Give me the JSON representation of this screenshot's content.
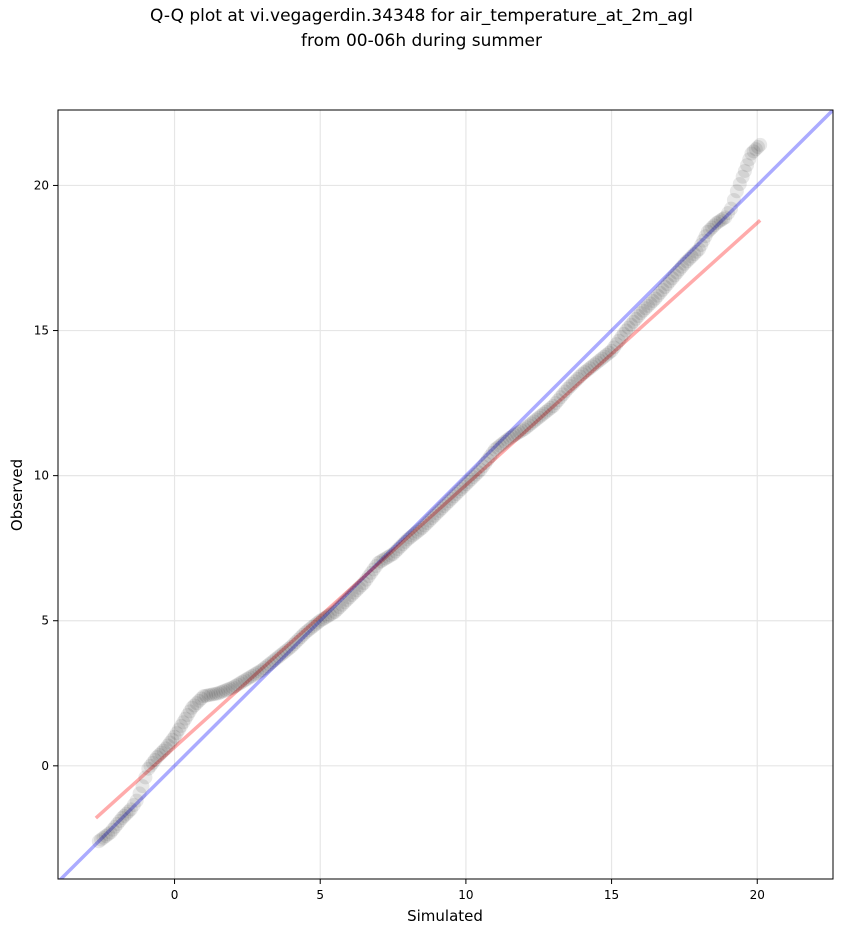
{
  "chart_data": {
    "type": "scatter",
    "title": "Q-Q plot at vi.vegagerdin.34348 for air_temperature_at_2m_agl",
    "subtitle": "from 00-06h during summer",
    "xlabel": "Simulated",
    "ylabel": "Observed",
    "xlim": [
      -4.0,
      22.6
    ],
    "ylim": [
      -3.9,
      22.6
    ],
    "xticks": [
      0,
      5,
      10,
      15,
      20
    ],
    "yticks": [
      0,
      5,
      10,
      15,
      20
    ],
    "grid": true,
    "colors": {
      "points": "#000000",
      "identity_line": "#0000ff",
      "fit_line": "#ff0000"
    },
    "quantile_curve": {
      "x": [
        -2.6,
        -2.2,
        -1.8,
        -1.5,
        -1.3,
        -1.1,
        -0.9,
        -0.6,
        -0.3,
        0.0,
        0.3,
        0.6,
        1.0,
        1.5,
        2.0,
        2.5,
        3.0,
        3.5,
        4.0,
        4.5,
        5.0,
        5.5,
        6.0,
        6.5,
        7.0,
        7.5,
        8.0,
        8.5,
        9.0,
        9.5,
        10.0,
        10.5,
        11.0,
        11.5,
        12.0,
        12.5,
        13.0,
        13.5,
        14.0,
        14.5,
        15.0,
        15.5,
        16.0,
        16.5,
        17.0,
        17.5,
        18.0,
        18.3,
        18.6,
        18.9,
        19.1,
        19.3,
        19.5,
        19.8,
        20.1
      ],
      "y": [
        -2.6,
        -2.3,
        -1.8,
        -1.5,
        -1.2,
        -0.7,
        -0.1,
        0.3,
        0.6,
        1.0,
        1.5,
        2.0,
        2.4,
        2.5,
        2.7,
        3.0,
        3.3,
        3.7,
        4.1,
        4.6,
        5.0,
        5.3,
        5.8,
        6.3,
        7.0,
        7.3,
        7.8,
        8.2,
        8.7,
        9.2,
        9.7,
        10.2,
        10.9,
        11.3,
        11.6,
        12.0,
        12.4,
        13.0,
        13.5,
        13.9,
        14.3,
        15.0,
        15.6,
        16.1,
        16.7,
        17.3,
        17.8,
        18.4,
        18.7,
        18.9,
        19.2,
        19.8,
        20.3,
        21.1,
        21.4
      ]
    },
    "identity_line": {
      "x": [
        -4.0,
        22.6
      ],
      "y": [
        -4.0,
        22.6
      ]
    },
    "fit_line": {
      "x": [
        -2.7,
        20.1
      ],
      "y": [
        -1.8,
        18.8
      ]
    }
  }
}
